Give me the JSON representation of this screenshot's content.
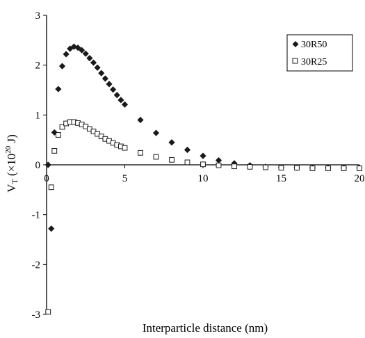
{
  "chart_data": {
    "type": "scatter",
    "xlabel": "Interparticle distance (nm)",
    "ylabel": {
      "base": "V",
      "sub": "T",
      "unit_prefix": " (×10",
      "exponent": "20",
      "unit_suffix": " J)"
    },
    "xlim": [
      0,
      20
    ],
    "ylim": [
      -3,
      3
    ],
    "x_ticks": [
      "0",
      "5",
      "10",
      "15",
      "20"
    ],
    "y_ticks": [
      "-3",
      "-2",
      "-1",
      "0",
      "1",
      "2",
      "3"
    ],
    "grid": false,
    "legend_position": "top-right",
    "series": [
      {
        "name": "30R50",
        "marker": "diamond-filled",
        "color": "#1a1a1a",
        "points": [
          [
            0.1,
            0.0
          ],
          [
            0.3,
            -1.28
          ],
          [
            0.5,
            0.65
          ],
          [
            0.75,
            1.52
          ],
          [
            1.0,
            1.98
          ],
          [
            1.25,
            2.22
          ],
          [
            1.5,
            2.33
          ],
          [
            1.75,
            2.37
          ],
          [
            2.0,
            2.35
          ],
          [
            2.25,
            2.3
          ],
          [
            2.5,
            2.23
          ],
          [
            2.75,
            2.14
          ],
          [
            3.0,
            2.05
          ],
          [
            3.25,
            1.95
          ],
          [
            3.5,
            1.84
          ],
          [
            3.75,
            1.73
          ],
          [
            4.0,
            1.62
          ],
          [
            4.25,
            1.51
          ],
          [
            4.5,
            1.4
          ],
          [
            4.75,
            1.3
          ],
          [
            5.0,
            1.21
          ],
          [
            6.0,
            0.9
          ],
          [
            7.0,
            0.64
          ],
          [
            8.0,
            0.45
          ],
          [
            9.0,
            0.3
          ],
          [
            10.0,
            0.18
          ],
          [
            11.0,
            0.09
          ],
          [
            12.0,
            0.03
          ],
          [
            13.0,
            -0.01
          ],
          [
            14.0,
            -0.04
          ],
          [
            15.0,
            -0.05
          ],
          [
            16.0,
            -0.06
          ],
          [
            17.0,
            -0.06
          ],
          [
            18.0,
            -0.06
          ],
          [
            19.0,
            -0.06
          ],
          [
            20.0,
            -0.06
          ]
        ]
      },
      {
        "name": "30R25",
        "marker": "square-open",
        "color": "#1a1a1a",
        "points": [
          [
            0.1,
            -2.95
          ],
          [
            0.3,
            -0.45
          ],
          [
            0.5,
            0.28
          ],
          [
            0.75,
            0.6
          ],
          [
            1.0,
            0.76
          ],
          [
            1.25,
            0.83
          ],
          [
            1.5,
            0.86
          ],
          [
            1.75,
            0.86
          ],
          [
            2.0,
            0.84
          ],
          [
            2.25,
            0.81
          ],
          [
            2.5,
            0.77
          ],
          [
            2.75,
            0.72
          ],
          [
            3.0,
            0.67
          ],
          [
            3.25,
            0.62
          ],
          [
            3.5,
            0.57
          ],
          [
            3.75,
            0.52
          ],
          [
            4.0,
            0.48
          ],
          [
            4.25,
            0.44
          ],
          [
            4.5,
            0.4
          ],
          [
            4.75,
            0.37
          ],
          [
            5.0,
            0.34
          ],
          [
            6.0,
            0.24
          ],
          [
            7.0,
            0.16
          ],
          [
            8.0,
            0.1
          ],
          [
            9.0,
            0.05
          ],
          [
            10.0,
            0.01
          ],
          [
            11.0,
            -0.01
          ],
          [
            12.0,
            -0.03
          ],
          [
            13.0,
            -0.04
          ],
          [
            14.0,
            -0.05
          ],
          [
            15.0,
            -0.06
          ],
          [
            16.0,
            -0.06
          ],
          [
            17.0,
            -0.07
          ],
          [
            18.0,
            -0.07
          ],
          [
            19.0,
            -0.07
          ],
          [
            20.0,
            -0.07
          ]
        ]
      }
    ]
  }
}
